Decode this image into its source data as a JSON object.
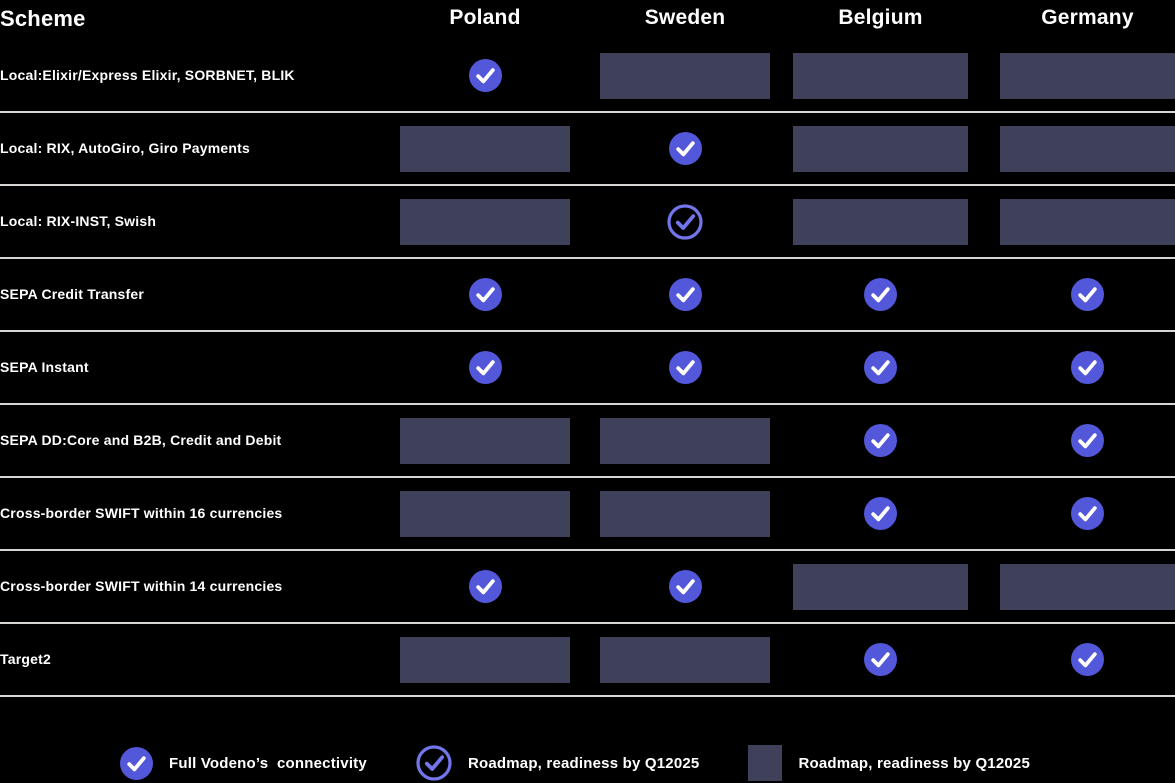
{
  "table": {
    "header": {
      "scheme_label": "Scheme",
      "countries": [
        "Poland",
        "Sweden",
        "Belgium",
        "Germany"
      ]
    },
    "rows": [
      {
        "label": "Local:Elixir/Express Elixir, SORBNET, BLIK",
        "cells": [
          "check",
          "block",
          "block",
          "block"
        ]
      },
      {
        "label": "Local: RIX, AutoGiro, Giro Payments",
        "cells": [
          "block",
          "check",
          "block",
          "block"
        ]
      },
      {
        "label": "Local: RIX-INST, Swish",
        "cells": [
          "block",
          "check-outline",
          "block",
          "block"
        ]
      },
      {
        "label": "SEPA Credit Transfer",
        "cells": [
          "check",
          "check",
          "check",
          "check"
        ]
      },
      {
        "label": "SEPA Instant",
        "cells": [
          "check",
          "check",
          "check",
          "check"
        ]
      },
      {
        "label": "SEPA DD:Core and B2B, Credit and Debit",
        "cells": [
          "block",
          "block",
          "check",
          "check"
        ]
      },
      {
        "label": "Cross-border SWIFT within 16 currencies",
        "cells": [
          "block",
          "block",
          "check",
          "check"
        ]
      },
      {
        "label": "Cross-border SWIFT within 14 currencies",
        "cells": [
          "check",
          "check",
          "block",
          "block"
        ]
      },
      {
        "label": "Target2",
        "cells": [
          "block",
          "block",
          "check",
          "check"
        ]
      }
    ]
  },
  "legend": [
    {
      "icon": "check",
      "label": "Full Vodeno’s  connectivity"
    },
    {
      "icon": "check-outline",
      "label": "Roadmap, readiness by Q12025"
    },
    {
      "icon": "block",
      "label": "Roadmap, readiness by Q12025"
    }
  ],
  "colors": {
    "background": "#000000",
    "text": "#ffffff",
    "divider": "#d8d4d1",
    "block": "#3f4059",
    "check_filled": "#5357d9",
    "check_outline": "#7276ea",
    "check_mark_on_filled": "#ffffff"
  },
  "chart_data": {
    "type": "table",
    "title": "Scheme",
    "columns": [
      "Scheme",
      "Poland",
      "Sweden",
      "Belgium",
      "Germany"
    ],
    "legend_position": "bottom",
    "value_legend": {
      "check": "Full Vodeno’s  connectivity",
      "check-outline": "Roadmap, readiness by Q12025",
      "block": "Roadmap, readiness by Q12025"
    },
    "rows": [
      [
        "Local:Elixir/Express Elixir, SORBNET, BLIK",
        "check",
        "block",
        "block",
        "block"
      ],
      [
        "Local: RIX, AutoGiro, Giro Payments",
        "block",
        "check",
        "block",
        "block"
      ],
      [
        "Local: RIX-INST, Swish",
        "block",
        "check-outline",
        "block",
        "block"
      ],
      [
        "SEPA Credit Transfer",
        "check",
        "check",
        "check",
        "check"
      ],
      [
        "SEPA Instant",
        "check",
        "check",
        "check",
        "check"
      ],
      [
        "SEPA DD:Core and B2B, Credit and Debit",
        "block",
        "block",
        "check",
        "check"
      ],
      [
        "Cross-border SWIFT within 16 currencies",
        "block",
        "block",
        "check",
        "check"
      ],
      [
        "Cross-border SWIFT within 14 currencies",
        "check",
        "check",
        "block",
        "block"
      ],
      [
        "Target2",
        "block",
        "block",
        "check",
        "check"
      ]
    ]
  }
}
